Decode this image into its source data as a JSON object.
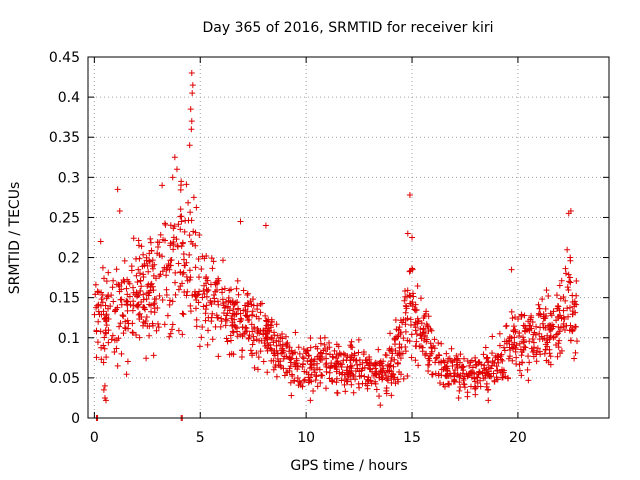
{
  "chart_data": {
    "type": "scatter",
    "title": "Day 365 of 2016, SRMTID for receiver kiri",
    "xlabel": "GPS time / hours",
    "ylabel": "SRMTID / TECUs",
    "xlim": [
      -0.3,
      24.3
    ],
    "ylim": [
      0,
      0.45
    ],
    "xticks": [
      0,
      5,
      10,
      15,
      20
    ],
    "xtick_labels": [
      "0",
      "5",
      "10",
      "15",
      "20"
    ],
    "yticks": [
      0,
      0.05,
      0.1,
      0.15,
      0.2,
      0.25,
      0.3,
      0.35,
      0.4,
      0.45
    ],
    "ytick_labels": [
      "0",
      "0.05",
      "0.1",
      "0.15",
      "0.2",
      "0.25",
      "0.3",
      "0.35",
      "0.4",
      "0.45"
    ],
    "grid": true,
    "marker": "+",
    "color": "#e00000",
    "series": [
      {
        "name": "SRMTID",
        "profile_x": [
          0,
          0.5,
          1,
          1.5,
          2,
          2.5,
          3,
          3.5,
          4,
          4.5,
          5,
          5.5,
          6,
          6.5,
          7,
          7.5,
          8,
          8.5,
          9,
          9.5,
          10,
          10.5,
          11,
          11.5,
          12,
          12.5,
          13,
          13.5,
          14,
          14.5,
          15,
          15.5,
          16,
          16.5,
          17,
          17.5,
          18,
          18.5,
          19,
          19.5,
          20,
          20.5,
          21,
          21.5,
          22,
          22.5,
          22.8
        ],
        "profile_y": [
          0.12,
          0.13,
          0.13,
          0.14,
          0.15,
          0.16,
          0.17,
          0.18,
          0.19,
          0.2,
          0.16,
          0.15,
          0.14,
          0.13,
          0.12,
          0.11,
          0.1,
          0.09,
          0.075,
          0.07,
          0.065,
          0.065,
          0.065,
          0.065,
          0.065,
          0.06,
          0.06,
          0.06,
          0.07,
          0.1,
          0.13,
          0.1,
          0.08,
          0.065,
          0.06,
          0.055,
          0.055,
          0.06,
          0.07,
          0.09,
          0.1,
          0.1,
          0.1,
          0.1,
          0.12,
          0.15,
          0.12
        ],
        "spread_y": [
          0.05,
          0.05,
          0.06,
          0.06,
          0.06,
          0.06,
          0.07,
          0.07,
          0.08,
          0.09,
          0.06,
          0.05,
          0.05,
          0.05,
          0.05,
          0.045,
          0.04,
          0.035,
          0.03,
          0.03,
          0.03,
          0.03,
          0.03,
          0.03,
          0.03,
          0.025,
          0.025,
          0.025,
          0.035,
          0.05,
          0.06,
          0.045,
          0.035,
          0.03,
          0.025,
          0.02,
          0.02,
          0.025,
          0.03,
          0.04,
          0.04,
          0.045,
          0.045,
          0.045,
          0.05,
          0.06,
          0.05
        ],
        "highlights": [
          {
            "x": 4.6,
            "y": 0.43
          },
          {
            "x": 4.65,
            "y": 0.415
          },
          {
            "x": 4.62,
            "y": 0.405
          },
          {
            "x": 4.55,
            "y": 0.385
          },
          {
            "x": 4.6,
            "y": 0.37
          },
          {
            "x": 4.58,
            "y": 0.36
          },
          {
            "x": 4.5,
            "y": 0.34
          },
          {
            "x": 3.8,
            "y": 0.325
          },
          {
            "x": 3.9,
            "y": 0.31
          },
          {
            "x": 3.7,
            "y": 0.3
          },
          {
            "x": 4.1,
            "y": 0.295
          },
          {
            "x": 3.2,
            "y": 0.29
          },
          {
            "x": 1.1,
            "y": 0.285
          },
          {
            "x": 4.7,
            "y": 0.275
          },
          {
            "x": 14.9,
            "y": 0.278
          },
          {
            "x": 22.5,
            "y": 0.258
          },
          {
            "x": 22.4,
            "y": 0.255
          },
          {
            "x": 1.2,
            "y": 0.258
          },
          {
            "x": 6.9,
            "y": 0.245
          },
          {
            "x": 8.1,
            "y": 0.24
          },
          {
            "x": 14.8,
            "y": 0.23
          },
          {
            "x": 15.0,
            "y": 0.225
          },
          {
            "x": 0.3,
            "y": 0.22
          },
          {
            "x": 19.7,
            "y": 0.185
          },
          {
            "x": 0.5,
            "y": 0.04
          },
          {
            "x": 0.45,
            "y": 0.035
          },
          {
            "x": 0.5,
            "y": 0.025
          },
          {
            "x": 0.55,
            "y": 0.022
          },
          {
            "x": 13.5,
            "y": 0.016
          },
          {
            "x": 10.2,
            "y": 0.022
          },
          {
            "x": 9.3,
            "y": 0.028
          },
          {
            "x": 17.2,
            "y": 0.025
          },
          {
            "x": 18.6,
            "y": 0.022
          },
          {
            "x": 1.1,
            "y": 0.065
          },
          {
            "x": 2.8,
            "y": 0.078
          }
        ],
        "zero_points": [
          {
            "x": 0.1,
            "y": 0
          },
          {
            "x": 0.15,
            "y": 0
          },
          {
            "x": 4.1,
            "y": 0
          },
          {
            "x": 4.15,
            "y": 0
          }
        ]
      }
    ]
  }
}
